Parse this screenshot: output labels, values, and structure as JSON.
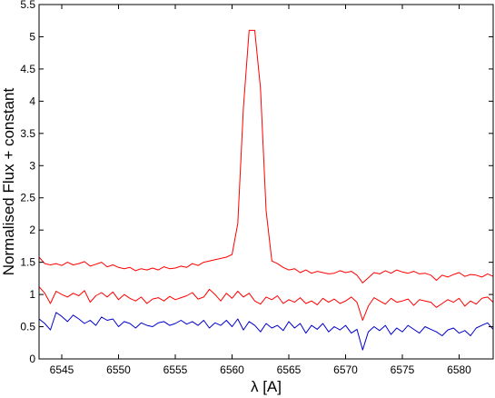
{
  "chart_data": {
    "type": "line",
    "title": "",
    "xlabel": "λ [A]",
    "ylabel": "Normalised Flux + constant",
    "xlim": [
      6543,
      6583
    ],
    "ylim": [
      0,
      5.5
    ],
    "xticks": [
      6545,
      6550,
      6555,
      6560,
      6565,
      6570,
      6575,
      6580
    ],
    "yticks": [
      0,
      0.5,
      1,
      1.5,
      2,
      2.5,
      3,
      3.5,
      4,
      4.5,
      5,
      5.5
    ],
    "xtick_labels": [
      "6545",
      "6550",
      "6555",
      "6560",
      "6565",
      "6570",
      "6575",
      "6580"
    ],
    "ytick_labels": [
      "0",
      "0.5",
      "1",
      "1.5",
      "2",
      "2.5",
      "3",
      "3.5",
      "4",
      "4.5",
      "5",
      "5.5"
    ],
    "grid": false,
    "legend": null,
    "series": [
      {
        "color": "#ff0000",
        "x": [
          6543.0,
          6543.5,
          6544.0,
          6544.5,
          6545.0,
          6545.5,
          6546.0,
          6546.5,
          6547.0,
          6547.5,
          6548.0,
          6548.5,
          6549.0,
          6549.5,
          6550.0,
          6550.5,
          6551.0,
          6551.5,
          6552.0,
          6552.5,
          6553.0,
          6553.5,
          6554.0,
          6554.5,
          6555.0,
          6555.5,
          6556.0,
          6556.5,
          6557.0,
          6557.5,
          6558.0,
          6558.5,
          6559.0,
          6559.5,
          6560.0,
          6560.5,
          6561.0,
          6561.5,
          6562.0,
          6562.5,
          6563.0,
          6563.5,
          6564.0,
          6564.5,
          6565.0,
          6565.5,
          6566.0,
          6566.5,
          6567.0,
          6567.5,
          6568.0,
          6568.5,
          6569.0,
          6569.5,
          6570.0,
          6570.5,
          6571.0,
          6571.5,
          6572.0,
          6572.5,
          6573.0,
          6573.5,
          6574.0,
          6574.5,
          6575.0,
          6575.5,
          6576.0,
          6576.5,
          6577.0,
          6577.5,
          6578.0,
          6578.5,
          6579.0,
          6579.5,
          6580.0,
          6580.5,
          6581.0,
          6581.5,
          6582.0,
          6582.5,
          6583.0
        ],
        "y": [
          1.58,
          1.48,
          1.46,
          1.48,
          1.45,
          1.5,
          1.46,
          1.48,
          1.51,
          1.44,
          1.47,
          1.5,
          1.43,
          1.46,
          1.42,
          1.4,
          1.42,
          1.37,
          1.4,
          1.38,
          1.41,
          1.38,
          1.43,
          1.4,
          1.41,
          1.44,
          1.42,
          1.48,
          1.45,
          1.5,
          1.52,
          1.54,
          1.56,
          1.58,
          1.62,
          2.1,
          3.9,
          5.1,
          5.1,
          4.2,
          2.3,
          1.52,
          1.48,
          1.42,
          1.38,
          1.4,
          1.34,
          1.38,
          1.33,
          1.36,
          1.34,
          1.32,
          1.33,
          1.37,
          1.34,
          1.36,
          1.3,
          1.18,
          1.26,
          1.34,
          1.32,
          1.37,
          1.33,
          1.38,
          1.35,
          1.33,
          1.36,
          1.32,
          1.33,
          1.3,
          1.22,
          1.3,
          1.27,
          1.31,
          1.34,
          1.28,
          1.31,
          1.3,
          1.27,
          1.32,
          1.28
        ]
      },
      {
        "color": "#ff0000",
        "x": [
          6543.0,
          6543.5,
          6544.0,
          6544.5,
          6545.0,
          6545.5,
          6546.0,
          6546.5,
          6547.0,
          6547.5,
          6548.0,
          6548.5,
          6549.0,
          6549.5,
          6550.0,
          6550.5,
          6551.0,
          6551.5,
          6552.0,
          6552.5,
          6553.0,
          6553.5,
          6554.0,
          6554.5,
          6555.0,
          6555.5,
          6556.0,
          6556.5,
          6557.0,
          6557.5,
          6558.0,
          6558.5,
          6559.0,
          6559.5,
          6560.0,
          6560.5,
          6561.0,
          6561.5,
          6562.0,
          6562.5,
          6563.0,
          6563.5,
          6564.0,
          6564.5,
          6565.0,
          6565.5,
          6566.0,
          6566.5,
          6567.0,
          6567.5,
          6568.0,
          6568.5,
          6569.0,
          6569.5,
          6570.0,
          6570.5,
          6571.0,
          6571.5,
          6572.0,
          6572.5,
          6573.0,
          6573.5,
          6574.0,
          6574.5,
          6575.0,
          6575.5,
          6576.0,
          6576.5,
          6577.0,
          6577.5,
          6578.0,
          6578.5,
          6579.0,
          6579.5,
          6580.0,
          6580.5,
          6581.0,
          6581.5,
          6582.0,
          6582.5,
          6583.0
        ],
        "y": [
          1.12,
          1.02,
          0.86,
          1.05,
          1.0,
          0.96,
          1.02,
          0.98,
          1.06,
          0.88,
          0.98,
          1.03,
          0.96,
          1.04,
          0.92,
          1.0,
          0.94,
          0.9,
          0.96,
          0.86,
          0.93,
          0.95,
          0.9,
          0.97,
          0.92,
          0.95,
          0.98,
          1.03,
          0.93,
          0.96,
          1.08,
          1.0,
          0.9,
          1.02,
          0.94,
          1.05,
          0.96,
          1.02,
          0.9,
          0.85,
          0.96,
          0.92,
          0.98,
          0.86,
          0.92,
          0.88,
          0.95,
          0.86,
          0.9,
          0.84,
          0.94,
          0.88,
          0.93,
          0.86,
          0.9,
          0.96,
          0.88,
          0.6,
          0.82,
          0.95,
          0.9,
          0.85,
          0.94,
          0.88,
          0.9,
          0.93,
          0.83,
          0.92,
          0.9,
          0.88,
          0.8,
          0.86,
          0.92,
          0.88,
          0.94,
          0.82,
          0.9,
          0.85,
          0.94,
          0.96,
          0.88
        ]
      },
      {
        "color": "#0000cc",
        "x": [
          6543.0,
          6543.5,
          6544.0,
          6544.5,
          6545.0,
          6545.5,
          6546.0,
          6546.5,
          6547.0,
          6547.5,
          6548.0,
          6548.5,
          6549.0,
          6549.5,
          6550.0,
          6550.5,
          6551.0,
          6551.5,
          6552.0,
          6552.5,
          6553.0,
          6553.5,
          6554.0,
          6554.5,
          6555.0,
          6555.5,
          6556.0,
          6556.5,
          6557.0,
          6557.5,
          6558.0,
          6558.5,
          6559.0,
          6559.5,
          6560.0,
          6560.5,
          6561.0,
          6561.5,
          6562.0,
          6562.5,
          6563.0,
          6563.5,
          6564.0,
          6564.5,
          6565.0,
          6565.5,
          6566.0,
          6566.5,
          6567.0,
          6567.5,
          6568.0,
          6568.5,
          6569.0,
          6569.5,
          6570.0,
          6570.5,
          6571.0,
          6571.5,
          6572.0,
          6572.5,
          6573.0,
          6573.5,
          6574.0,
          6574.5,
          6575.0,
          6575.5,
          6576.0,
          6576.5,
          6577.0,
          6577.5,
          6578.0,
          6578.5,
          6579.0,
          6579.5,
          6580.0,
          6580.5,
          6581.0,
          6581.5,
          6582.0,
          6582.5,
          6583.0
        ],
        "y": [
          0.62,
          0.55,
          0.45,
          0.72,
          0.66,
          0.58,
          0.68,
          0.62,
          0.55,
          0.6,
          0.52,
          0.65,
          0.6,
          0.62,
          0.5,
          0.58,
          0.55,
          0.48,
          0.56,
          0.52,
          0.5,
          0.56,
          0.58,
          0.52,
          0.55,
          0.6,
          0.54,
          0.58,
          0.52,
          0.6,
          0.48,
          0.56,
          0.52,
          0.6,
          0.5,
          0.62,
          0.45,
          0.58,
          0.52,
          0.42,
          0.55,
          0.48,
          0.52,
          0.44,
          0.58,
          0.48,
          0.55,
          0.4,
          0.52,
          0.46,
          0.55,
          0.42,
          0.5,
          0.45,
          0.52,
          0.4,
          0.46,
          0.14,
          0.42,
          0.5,
          0.44,
          0.52,
          0.38,
          0.48,
          0.42,
          0.52,
          0.46,
          0.4,
          0.5,
          0.46,
          0.42,
          0.36,
          0.45,
          0.48,
          0.4,
          0.44,
          0.36,
          0.48,
          0.52,
          0.56,
          0.46
        ]
      }
    ]
  }
}
